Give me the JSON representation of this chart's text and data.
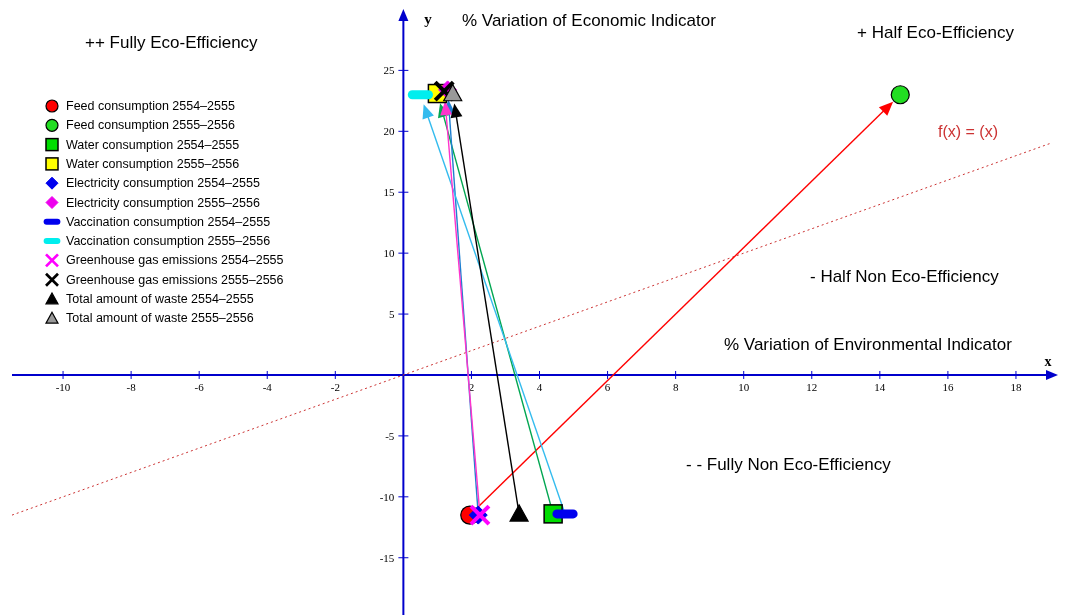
{
  "chart_data": {
    "type": "scatter",
    "xlabel": "% Variation of Environmental Indicator",
    "ylabel": "% Variation of Economic Indicator",
    "annotations": [
      "++ Fully Eco-Efficiency",
      "+ Half Eco-Efficiency",
      "- Half Non Eco-Efficiency",
      "- - Fully Non Eco-Efficiency",
      "x",
      "y"
    ],
    "xlim": [
      -11.5,
      19
    ],
    "ylim": [
      -19.7,
      29.3
    ],
    "xticks": [
      -10,
      -8,
      -6,
      -4,
      -2,
      2,
      4,
      6,
      8,
      10,
      12,
      14,
      16,
      18
    ],
    "yticks": [
      -15,
      -10,
      -5,
      5,
      10,
      15,
      20,
      25
    ],
    "grid": false,
    "legend": "top left",
    "series": [
      {
        "type": "line",
        "name": "f(x) = (x)",
        "color": "#cc3333",
        "line_style": "dotted",
        "x": [
          -11.5,
          19
        ],
        "values": [
          -11.5,
          19
        ]
      },
      {
        "name": "Feed consumption 2554–2555",
        "color": "#ff0000",
        "marker": "circle",
        "x": [
          1.95
        ],
        "values": [
          -11.5
        ]
      },
      {
        "name": "Feed consumption 2555–2556",
        "color": "#22dd22",
        "marker": "circle",
        "x": [
          14.6
        ],
        "values": [
          23.0
        ]
      },
      {
        "name": "Water consumption 2554–2555",
        "color": "#00dd00",
        "marker": "square",
        "x": [
          4.4
        ],
        "values": [
          -11.4
        ]
      },
      {
        "name": "Water consumption 2555–2556",
        "color": "#ffff00",
        "marker": "square",
        "x": [
          1.0
        ],
        "values": [
          23.1
        ]
      },
      {
        "name": "Electricity consumption 2554–2555",
        "color": "#0000ee",
        "marker": "diamond",
        "x": [
          2.2
        ],
        "values": [
          -11.5
        ]
      },
      {
        "name": "Electricity consumption 2555–2556",
        "color": "#ee00ee",
        "marker": "diamond",
        "x": [
          1.3
        ],
        "values": [
          23.4
        ]
      },
      {
        "name": "Vaccination consumption 2554–2555",
        "color": "#0000ee",
        "x": [
          4.75
        ],
        "values": [
          -11.4
        ]
      },
      {
        "name": "Vaccination consumption 2555–2556",
        "color": "#00eeee",
        "x": [
          0.5
        ],
        "values": [
          23.0
        ]
      },
      {
        "name": "Greenhouse gas emissions 2554–2555",
        "color": "#ff00ff",
        "marker": "cross",
        "x": [
          2.25
        ],
        "values": [
          -11.5
        ]
      },
      {
        "name": "Greenhouse gas emissions 2555–2556",
        "color": "#000000",
        "marker": "cross",
        "x": [
          1.2
        ],
        "values": [
          23.3
        ]
      },
      {
        "name": "Total amount of waste 2554–2555",
        "color": "#000000",
        "marker": "triangle",
        "x": [
          3.4
        ],
        "values": [
          -11.4
        ]
      },
      {
        "name": "Total amount of waste 2555–2556",
        "color": "#999999",
        "marker": "triangle",
        "x": [
          1.45
        ],
        "values": [
          23.1
        ]
      }
    ]
  }
}
